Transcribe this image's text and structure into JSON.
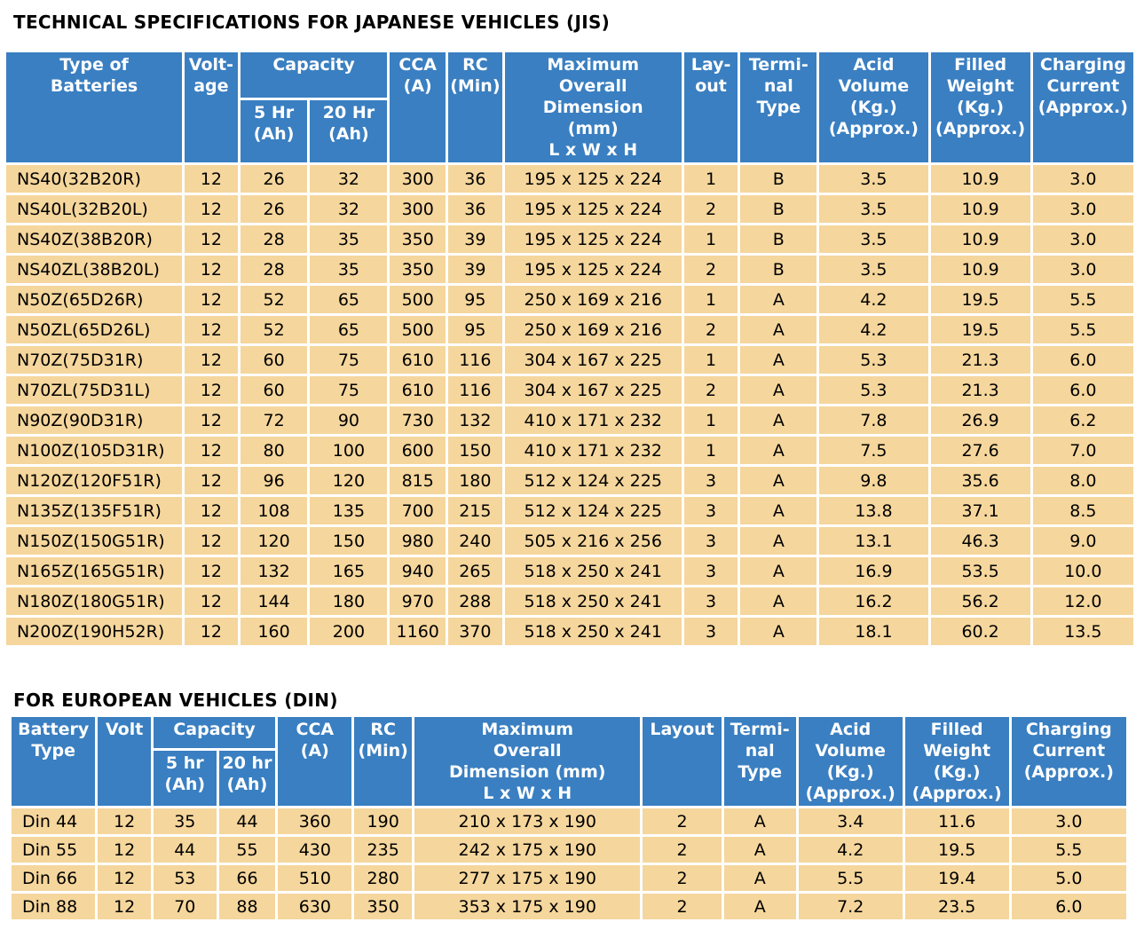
{
  "jis": {
    "title": "TECHNICAL SPECIFICATIONS FOR JAPANESE VEHICLES (JIS)",
    "headers": {
      "type": "Type of\nBatteries",
      "voltage": "Volt-\nage",
      "capacity": "Capacity",
      "hr5": "5 Hr\n(Ah)",
      "hr20": "20 Hr\n(Ah)",
      "cca": "CCA\n(A)",
      "rc": "RC\n(Min)",
      "dimension": "Maximum\nOverall\nDimension\n(mm)\nL x W x H",
      "layout": "Lay-\nout",
      "terminal": "Termi-\nnal\nType",
      "acid": "Acid\nVolume\n(Kg.)\n(Approx.)",
      "weight": "Filled\nWeight\n(Kg.)\n(Approx.)",
      "charging": "Charging\nCurrent\n(Approx.)"
    },
    "rows": [
      [
        "NS40(32B20R)",
        "12",
        "26",
        "32",
        "300",
        "36",
        "195 x 125 x 224",
        "1",
        "B",
        "3.5",
        "10.9",
        "3.0"
      ],
      [
        "NS40L(32B20L)",
        "12",
        "26",
        "32",
        "300",
        "36",
        "195 x 125 x 224",
        "2",
        "B",
        "3.5",
        "10.9",
        "3.0"
      ],
      [
        "NS40Z(38B20R)",
        "12",
        "28",
        "35",
        "350",
        "39",
        "195 x 125 x 224",
        "1",
        "B",
        "3.5",
        "10.9",
        "3.0"
      ],
      [
        "NS40ZL(38B20L)",
        "12",
        "28",
        "35",
        "350",
        "39",
        "195 x 125 x 224",
        "2",
        "B",
        "3.5",
        "10.9",
        "3.0"
      ],
      [
        "N50Z(65D26R)",
        "12",
        "52",
        "65",
        "500",
        "95",
        "250 x 169 x 216",
        "1",
        "A",
        "4.2",
        "19.5",
        "5.5"
      ],
      [
        "N50ZL(65D26L)",
        "12",
        "52",
        "65",
        "500",
        "95",
        "250 x 169 x 216",
        "2",
        "A",
        "4.2",
        "19.5",
        "5.5"
      ],
      [
        "N70Z(75D31R)",
        "12",
        "60",
        "75",
        "610",
        "116",
        "304 x 167 x 225",
        "1",
        "A",
        "5.3",
        "21.3",
        "6.0"
      ],
      [
        "N70ZL(75D31L)",
        "12",
        "60",
        "75",
        "610",
        "116",
        "304 x 167 x 225",
        "2",
        "A",
        "5.3",
        "21.3",
        "6.0"
      ],
      [
        "N90Z(90D31R)",
        "12",
        "72",
        "90",
        "730",
        "132",
        "410 x 171 x 232",
        "1",
        "A",
        "7.8",
        "26.9",
        "6.2"
      ],
      [
        "N100Z(105D31R)",
        "12",
        "80",
        "100",
        "600",
        "150",
        "410 x 171 x 232",
        "1",
        "A",
        "7.5",
        "27.6",
        "7.0"
      ],
      [
        "N120Z(120F51R)",
        "12",
        "96",
        "120",
        "815",
        "180",
        "512 x 124 x 225",
        "3",
        "A",
        "9.8",
        "35.6",
        "8.0"
      ],
      [
        "N135Z(135F51R)",
        "12",
        "108",
        "135",
        "700",
        "215",
        "512 x 124 x 225",
        "3",
        "A",
        "13.8",
        "37.1",
        "8.5"
      ],
      [
        "N150Z(150G51R)",
        "12",
        "120",
        "150",
        "980",
        "240",
        "505 x 216 x 256",
        "3",
        "A",
        "13.1",
        "46.3",
        "9.0"
      ],
      [
        "N165Z(165G51R)",
        "12",
        "132",
        "165",
        "940",
        "265",
        "518 x 250 x 241",
        "3",
        "A",
        "16.9",
        "53.5",
        "10.0"
      ],
      [
        "N180Z(180G51R)",
        "12",
        "144",
        "180",
        "970",
        "288",
        "518 x 250 x 241",
        "3",
        "A",
        "16.2",
        "56.2",
        "12.0"
      ],
      [
        "N200Z(190H52R)",
        "12",
        "160",
        "200",
        "1160",
        "370",
        "518 x 250 x 241",
        "3",
        "A",
        "18.1",
        "60.2",
        "13.5"
      ]
    ]
  },
  "din": {
    "title": "FOR EUROPEAN VEHICLES (DIN)",
    "headers": {
      "type": "Battery\nType",
      "voltage": "Volt",
      "capacity": "Capacity",
      "hr5": "5 hr\n(Ah)",
      "hr20": "20 hr\n(Ah)",
      "cca": "CCA\n(A)",
      "rc": "RC\n(Min)",
      "dimension": "Maximum\nOverall\nDimension (mm)\nL x W x H",
      "layout": "Layout",
      "terminal": "Termi-\nnal\nType",
      "acid": "Acid\nVolume\n(Kg.)\n(Approx.)",
      "weight": "Filled\nWeight\n(Kg.)\n(Approx.)",
      "charging": "Charging\nCurrent\n(Approx.)"
    },
    "rows": [
      [
        "Din 44",
        "12",
        "35",
        "44",
        "360",
        "190",
        "210 x 173 x 190",
        "2",
        "A",
        "3.4",
        "11.6",
        "3.0"
      ],
      [
        "Din 55",
        "12",
        "44",
        "55",
        "430",
        "235",
        "242 x 175 x 190",
        "2",
        "A",
        "4.2",
        "19.5",
        "5.5"
      ],
      [
        "Din 66",
        "12",
        "53",
        "66",
        "510",
        "280",
        "277 x 175 x 190",
        "2",
        "A",
        "5.5",
        "19.4",
        "5.0"
      ],
      [
        "Din 88",
        "12",
        "70",
        "88",
        "630",
        "350",
        "353 x 175 x 190",
        "2",
        "A",
        "7.2",
        "23.5",
        "6.0"
      ]
    ]
  }
}
